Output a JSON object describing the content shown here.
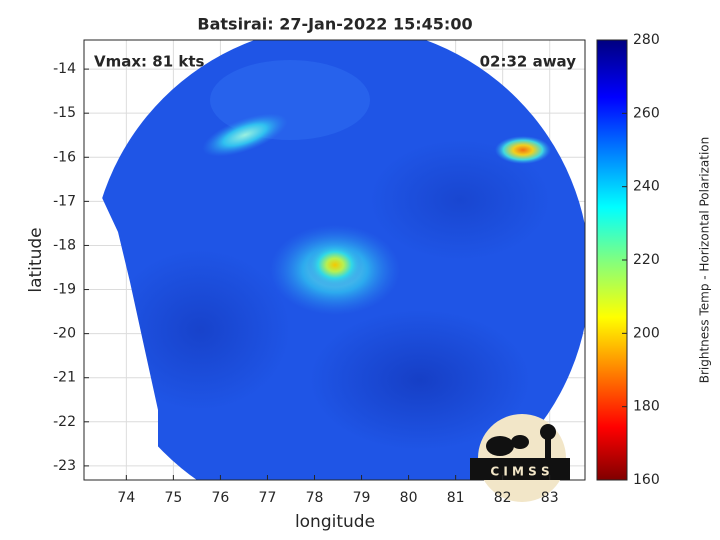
{
  "chart_data": {
    "type": "image",
    "title": "Batsirai: 27-Jan-2022 15:45:00",
    "xlabel": "longitude",
    "ylabel": "latitude",
    "xlim": [
      73.1,
      83.75
    ],
    "ylim": [
      -23.32,
      -13.34
    ],
    "xticks": [
      74,
      75,
      76,
      77,
      78,
      79,
      80,
      81,
      82,
      83
    ],
    "yticks": [
      -23,
      -22,
      -21,
      -20,
      -19,
      -18,
      -17,
      -16,
      -15,
      -14
    ],
    "grid": true,
    "annotations": [
      "Vmax: 81 kts",
      "02:32 away"
    ],
    "colorbar": {
      "label": "Brightness Temp - Horizontal Polarization",
      "lim": [
        160,
        280
      ],
      "ticks": [
        160,
        180,
        200,
        220,
        240,
        260,
        280
      ]
    },
    "logo": "C I M S S"
  }
}
